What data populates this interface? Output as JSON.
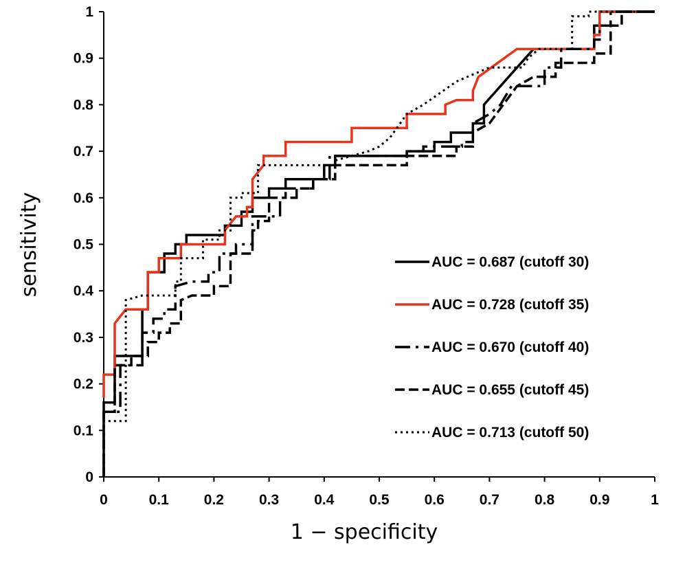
{
  "chart_data": {
    "type": "line",
    "title": "",
    "xlabel": "1 − specificity",
    "ylabel": "sensitivity",
    "xlim": [
      0,
      1
    ],
    "ylim": [
      0,
      1
    ],
    "x_ticks": [
      "0",
      "0.1",
      "0.2",
      "0.3",
      "0.4",
      "0.5",
      "0.6",
      "0.7",
      "0.8",
      "0.9",
      "1"
    ],
    "y_ticks": [
      "0",
      "0.1",
      "0.2",
      "0.3",
      "0.4",
      "0.5",
      "0.6",
      "0.7",
      "0.8",
      "0.9",
      "1"
    ],
    "grid": false,
    "legend_position": "bottom-right",
    "series": [
      {
        "name": "AUC = 0.687 (cutoff 30)",
        "color": "#000000",
        "style": "solid",
        "points": [
          [
            0,
            0
          ],
          [
            0,
            0.16
          ],
          [
            0.02,
            0.16
          ],
          [
            0.02,
            0.26
          ],
          [
            0.07,
            0.26
          ],
          [
            0.07,
            0.36
          ],
          [
            0.08,
            0.36
          ],
          [
            0.08,
            0.44
          ],
          [
            0.11,
            0.44
          ],
          [
            0.11,
            0.48
          ],
          [
            0.13,
            0.48
          ],
          [
            0.13,
            0.5
          ],
          [
            0.15,
            0.5
          ],
          [
            0.15,
            0.52
          ],
          [
            0.22,
            0.52
          ],
          [
            0.22,
            0.54
          ],
          [
            0.25,
            0.54
          ],
          [
            0.25,
            0.57
          ],
          [
            0.27,
            0.57
          ],
          [
            0.27,
            0.6
          ],
          [
            0.3,
            0.6
          ],
          [
            0.3,
            0.62
          ],
          [
            0.33,
            0.62
          ],
          [
            0.33,
            0.64
          ],
          [
            0.4,
            0.64
          ],
          [
            0.4,
            0.67
          ],
          [
            0.42,
            0.67
          ],
          [
            0.42,
            0.69
          ],
          [
            0.55,
            0.69
          ],
          [
            0.55,
            0.7
          ],
          [
            0.6,
            0.7
          ],
          [
            0.6,
            0.72
          ],
          [
            0.63,
            0.72
          ],
          [
            0.63,
            0.74
          ],
          [
            0.67,
            0.74
          ],
          [
            0.67,
            0.76
          ],
          [
            0.69,
            0.76
          ],
          [
            0.69,
            0.8
          ],
          [
            0.72,
            0.84
          ],
          [
            0.78,
            0.92
          ],
          [
            0.89,
            0.92
          ],
          [
            0.89,
            0.97
          ],
          [
            0.9,
            0.97
          ],
          [
            0.9,
            1
          ],
          [
            1,
            1
          ]
        ]
      },
      {
        "name": "AUC = 0.728 (cutoff 35)",
        "color": "#e8341c",
        "style": "solid",
        "points": [
          [
            0,
            0.17
          ],
          [
            0,
            0.22
          ],
          [
            0.02,
            0.22
          ],
          [
            0.02,
            0.33
          ],
          [
            0.04,
            0.36
          ],
          [
            0.08,
            0.36
          ],
          [
            0.08,
            0.44
          ],
          [
            0.1,
            0.44
          ],
          [
            0.1,
            0.47
          ],
          [
            0.14,
            0.47
          ],
          [
            0.14,
            0.5
          ],
          [
            0.22,
            0.5
          ],
          [
            0.22,
            0.53
          ],
          [
            0.24,
            0.56
          ],
          [
            0.26,
            0.56
          ],
          [
            0.26,
            0.58
          ],
          [
            0.27,
            0.58
          ],
          [
            0.27,
            0.64
          ],
          [
            0.29,
            0.67
          ],
          [
            0.29,
            0.69
          ],
          [
            0.33,
            0.69
          ],
          [
            0.33,
            0.72
          ],
          [
            0.45,
            0.72
          ],
          [
            0.45,
            0.75
          ],
          [
            0.55,
            0.75
          ],
          [
            0.55,
            0.78
          ],
          [
            0.62,
            0.78
          ],
          [
            0.62,
            0.8
          ],
          [
            0.64,
            0.81
          ],
          [
            0.67,
            0.81
          ],
          [
            0.67,
            0.83
          ],
          [
            0.68,
            0.86
          ],
          [
            0.75,
            0.92
          ],
          [
            0.89,
            0.92
          ],
          [
            0.89,
            0.95
          ],
          [
            0.9,
            0.95
          ],
          [
            0.9,
            1
          ],
          [
            1,
            1
          ]
        ]
      },
      {
        "name": "AUC = 0.670 (cutoff 40)",
        "color": "#000000",
        "style": "dashdot",
        "points": [
          [
            0,
            0
          ],
          [
            0,
            0.14
          ],
          [
            0.03,
            0.14
          ],
          [
            0.03,
            0.24
          ],
          [
            0.07,
            0.24
          ],
          [
            0.07,
            0.31
          ],
          [
            0.09,
            0.31
          ],
          [
            0.09,
            0.34
          ],
          [
            0.11,
            0.34
          ],
          [
            0.11,
            0.36
          ],
          [
            0.13,
            0.36
          ],
          [
            0.13,
            0.41
          ],
          [
            0.16,
            0.42
          ],
          [
            0.19,
            0.42
          ],
          [
            0.19,
            0.44
          ],
          [
            0.21,
            0.44
          ],
          [
            0.21,
            0.48
          ],
          [
            0.24,
            0.48
          ],
          [
            0.24,
            0.5
          ],
          [
            0.27,
            0.5
          ],
          [
            0.27,
            0.56
          ],
          [
            0.32,
            0.56
          ],
          [
            0.32,
            0.6
          ],
          [
            0.35,
            0.6
          ],
          [
            0.35,
            0.62
          ],
          [
            0.38,
            0.62
          ],
          [
            0.38,
            0.64
          ],
          [
            0.41,
            0.64
          ],
          [
            0.41,
            0.69
          ],
          [
            0.55,
            0.69
          ],
          [
            0.55,
            0.7
          ],
          [
            0.58,
            0.7
          ],
          [
            0.58,
            0.71
          ],
          [
            0.65,
            0.71
          ],
          [
            0.65,
            0.72
          ],
          [
            0.67,
            0.72
          ],
          [
            0.67,
            0.76
          ],
          [
            0.7,
            0.78
          ],
          [
            0.72,
            0.8
          ],
          [
            0.74,
            0.84
          ],
          [
            0.8,
            0.84
          ],
          [
            0.8,
            0.88
          ],
          [
            0.83,
            0.88
          ],
          [
            0.83,
            0.92
          ],
          [
            0.89,
            0.92
          ],
          [
            0.89,
            0.94
          ],
          [
            0.9,
            0.94
          ],
          [
            0.9,
            0.97
          ],
          [
            0.92,
            0.97
          ],
          [
            0.92,
            1
          ],
          [
            1,
            1
          ]
        ]
      },
      {
        "name": "AUC = 0.655 (cutoff 45)",
        "color": "#000000",
        "style": "dashed",
        "points": [
          [
            0,
            0
          ],
          [
            0,
            0.14
          ],
          [
            0.02,
            0.14
          ],
          [
            0.02,
            0.24
          ],
          [
            0.05,
            0.24
          ],
          [
            0.05,
            0.26
          ],
          [
            0.08,
            0.26
          ],
          [
            0.08,
            0.29
          ],
          [
            0.1,
            0.29
          ],
          [
            0.1,
            0.31
          ],
          [
            0.12,
            0.31
          ],
          [
            0.12,
            0.33
          ],
          [
            0.14,
            0.33
          ],
          [
            0.14,
            0.38
          ],
          [
            0.16,
            0.39
          ],
          [
            0.2,
            0.39
          ],
          [
            0.2,
            0.41
          ],
          [
            0.23,
            0.41
          ],
          [
            0.23,
            0.48
          ],
          [
            0.27,
            0.48
          ],
          [
            0.27,
            0.53
          ],
          [
            0.28,
            0.53
          ],
          [
            0.28,
            0.55
          ],
          [
            0.3,
            0.55
          ],
          [
            0.3,
            0.6
          ],
          [
            0.33,
            0.6
          ],
          [
            0.33,
            0.62
          ],
          [
            0.38,
            0.62
          ],
          [
            0.38,
            0.64
          ],
          [
            0.42,
            0.64
          ],
          [
            0.42,
            0.67
          ],
          [
            0.55,
            0.67
          ],
          [
            0.55,
            0.69
          ],
          [
            0.64,
            0.69
          ],
          [
            0.64,
            0.71
          ],
          [
            0.67,
            0.71
          ],
          [
            0.67,
            0.74
          ],
          [
            0.7,
            0.76
          ],
          [
            0.75,
            0.84
          ],
          [
            0.78,
            0.86
          ],
          [
            0.82,
            0.86
          ],
          [
            0.82,
            0.89
          ],
          [
            0.89,
            0.89
          ],
          [
            0.89,
            0.91
          ],
          [
            0.92,
            0.91
          ],
          [
            0.92,
            0.97
          ],
          [
            0.94,
            0.97
          ],
          [
            0.94,
            1
          ],
          [
            1,
            1
          ]
        ]
      },
      {
        "name": "AUC = 0.713 (cutoff 50)",
        "color": "#000000",
        "style": "dotted",
        "points": [
          [
            0,
            0
          ],
          [
            0,
            0.12
          ],
          [
            0.04,
            0.12
          ],
          [
            0.04,
            0.38
          ],
          [
            0.07,
            0.39
          ],
          [
            0.13,
            0.39
          ],
          [
            0.13,
            0.42
          ],
          [
            0.14,
            0.42
          ],
          [
            0.14,
            0.47
          ],
          [
            0.18,
            0.47
          ],
          [
            0.18,
            0.51
          ],
          [
            0.21,
            0.51
          ],
          [
            0.21,
            0.53
          ],
          [
            0.23,
            0.53
          ],
          [
            0.23,
            0.6
          ],
          [
            0.25,
            0.6
          ],
          [
            0.25,
            0.61
          ],
          [
            0.28,
            0.61
          ],
          [
            0.28,
            0.67
          ],
          [
            0.42,
            0.67
          ],
          [
            0.42,
            0.68
          ],
          [
            0.48,
            0.7
          ],
          [
            0.5,
            0.71
          ],
          [
            0.52,
            0.73
          ],
          [
            0.55,
            0.78
          ],
          [
            0.58,
            0.8
          ],
          [
            0.64,
            0.85
          ],
          [
            0.7,
            0.88
          ],
          [
            0.76,
            0.88
          ],
          [
            0.77,
            0.9
          ],
          [
            0.79,
            0.92
          ],
          [
            0.85,
            0.92
          ],
          [
            0.85,
            0.99
          ],
          [
            0.88,
            0.99
          ],
          [
            0.88,
            1
          ],
          [
            1,
            1
          ]
        ]
      }
    ]
  }
}
